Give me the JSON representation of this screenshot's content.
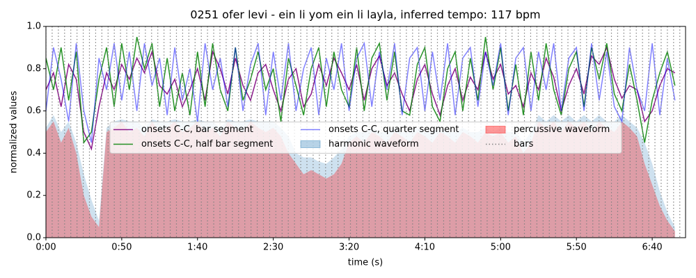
{
  "chart_data": {
    "type": "line",
    "title": "0251 ofer levi - ein li yom ein li layla, inferred tempo: 117 bpm",
    "xlabel": "time (s)",
    "ylabel": "normalized values",
    "xlim": [
      0,
      422
    ],
    "ylim": [
      0,
      1
    ],
    "xticks": [
      {
        "value": 0,
        "label": "0:00"
      },
      {
        "value": 50,
        "label": "0:50"
      },
      {
        "value": 100,
        "label": "1:40"
      },
      {
        "value": 150,
        "label": "2:30"
      },
      {
        "value": 200,
        "label": "3:20"
      },
      {
        "value": 250,
        "label": "4:10"
      },
      {
        "value": 300,
        "label": "5:00"
      },
      {
        "value": 350,
        "label": "5:50"
      },
      {
        "value": 400,
        "label": "6:40"
      }
    ],
    "yticks": [
      {
        "value": 0,
        "label": "0.0"
      },
      {
        "value": 0.2,
        "label": "0.2"
      },
      {
        "value": 0.4,
        "label": "0.4"
      },
      {
        "value": 0.6,
        "label": "0.6"
      },
      {
        "value": 0.8,
        "label": "0.8"
      },
      {
        "value": 1,
        "label": "1.0"
      }
    ],
    "legend": "center",
    "x": [
      0,
      5,
      10,
      15,
      20,
      25,
      30,
      35,
      40,
      45,
      50,
      55,
      60,
      65,
      70,
      75,
      80,
      85,
      90,
      95,
      100,
      105,
      110,
      115,
      120,
      125,
      130,
      135,
      140,
      145,
      150,
      155,
      160,
      165,
      170,
      175,
      180,
      185,
      190,
      195,
      200,
      205,
      210,
      215,
      220,
      225,
      230,
      235,
      240,
      245,
      250,
      255,
      260,
      265,
      270,
      275,
      280,
      285,
      290,
      295,
      300,
      305,
      310,
      315,
      320,
      325,
      330,
      335,
      340,
      345,
      350,
      355,
      360,
      365,
      370,
      375,
      380,
      385,
      390,
      395,
      400,
      405,
      410,
      415
    ],
    "series": [
      {
        "name": "onsets C-C, bar segment",
        "style": "line",
        "color": "#800080",
        "opacity": 0.9,
        "values": [
          0.7,
          0.78,
          0.62,
          0.82,
          0.75,
          0.5,
          0.42,
          0.62,
          0.78,
          0.7,
          0.82,
          0.75,
          0.85,
          0.78,
          0.88,
          0.72,
          0.68,
          0.75,
          0.62,
          0.7,
          0.8,
          0.65,
          0.88,
          0.8,
          0.68,
          0.85,
          0.72,
          0.65,
          0.78,
          0.82,
          0.7,
          0.6,
          0.75,
          0.8,
          0.62,
          0.68,
          0.82,
          0.72,
          0.85,
          0.78,
          0.7,
          0.82,
          0.65,
          0.8,
          0.86,
          0.72,
          0.78,
          0.68,
          0.6,
          0.75,
          0.82,
          0.68,
          0.58,
          0.72,
          0.8,
          0.65,
          0.76,
          0.7,
          0.88,
          0.75,
          0.82,
          0.68,
          0.72,
          0.62,
          0.78,
          0.7,
          0.85,
          0.76,
          0.6,
          0.72,
          0.8,
          0.68,
          0.86,
          0.82,
          0.9,
          0.75,
          0.66,
          0.72,
          0.7,
          0.55,
          0.6,
          0.72,
          0.8,
          0.78
        ]
      },
      {
        "name": "onsets C-C, half bar segment",
        "style": "line",
        "color": "#008000",
        "opacity": 0.85,
        "values": [
          0.85,
          0.7,
          0.9,
          0.65,
          0.88,
          0.45,
          0.5,
          0.75,
          0.9,
          0.62,
          0.92,
          0.7,
          0.95,
          0.8,
          0.92,
          0.62,
          0.85,
          0.6,
          0.78,
          0.58,
          0.88,
          0.62,
          0.92,
          0.7,
          0.6,
          0.9,
          0.65,
          0.75,
          0.88,
          0.7,
          0.8,
          0.55,
          0.85,
          0.72,
          0.58,
          0.8,
          0.9,
          0.62,
          0.88,
          0.7,
          0.62,
          0.9,
          0.6,
          0.85,
          0.92,
          0.65,
          0.88,
          0.6,
          0.58,
          0.82,
          0.9,
          0.62,
          0.55,
          0.8,
          0.88,
          0.6,
          0.85,
          0.65,
          0.95,
          0.7,
          0.9,
          0.6,
          0.82,
          0.58,
          0.88,
          0.65,
          0.92,
          0.7,
          0.58,
          0.8,
          0.88,
          0.62,
          0.9,
          0.75,
          0.92,
          0.68,
          0.6,
          0.82,
          0.65,
          0.45,
          0.65,
          0.78,
          0.88,
          0.72
        ]
      },
      {
        "name": "onsets C-C, quarter segment",
        "style": "line",
        "color": "#0000ff",
        "opacity": 0.5,
        "values": [
          0.6,
          0.9,
          0.75,
          0.55,
          0.92,
          0.6,
          0.45,
          0.85,
          0.7,
          0.92,
          0.65,
          0.88,
          0.6,
          0.92,
          0.72,
          0.85,
          0.58,
          0.9,
          0.65,
          0.8,
          0.55,
          0.92,
          0.7,
          0.85,
          0.62,
          0.9,
          0.6,
          0.82,
          0.92,
          0.58,
          0.88,
          0.65,
          0.92,
          0.6,
          0.8,
          0.9,
          0.58,
          0.85,
          0.7,
          0.92,
          0.6,
          0.85,
          0.92,
          0.62,
          0.88,
          0.7,
          0.92,
          0.58,
          0.85,
          0.9,
          0.6,
          0.88,
          0.65,
          0.92,
          0.58,
          0.85,
          0.9,
          0.62,
          0.88,
          0.72,
          0.92,
          0.58,
          0.85,
          0.9,
          0.6,
          0.88,
          0.7,
          0.92,
          0.6,
          0.85,
          0.9,
          0.6,
          0.92,
          0.65,
          0.88,
          0.62,
          0.55,
          0.9,
          0.7,
          0.6,
          0.92,
          0.58,
          0.85,
          0.65
        ]
      },
      {
        "name": "harmonic waveform",
        "style": "area",
        "color": "#1f77b4",
        "opacity": 0.22,
        "values": [
          0.52,
          0.58,
          0.5,
          0.55,
          0.45,
          0.3,
          0.18,
          0.08,
          0.52,
          0.55,
          0.56,
          0.55,
          0.55,
          0.52,
          0.56,
          0.55,
          0.55,
          0.56,
          0.55,
          0.55,
          0.56,
          0.55,
          0.55,
          0.52,
          0.56,
          0.55,
          0.55,
          0.56,
          0.55,
          0.55,
          0.55,
          0.52,
          0.48,
          0.4,
          0.38,
          0.38,
          0.36,
          0.35,
          0.38,
          0.42,
          0.48,
          0.5,
          0.5,
          0.52,
          0.5,
          0.5,
          0.52,
          0.5,
          0.5,
          0.52,
          0.5,
          0.5,
          0.52,
          0.5,
          0.5,
          0.52,
          0.5,
          0.5,
          0.52,
          0.5,
          0.52,
          0.5,
          0.5,
          0.45,
          0.5,
          0.58,
          0.55,
          0.58,
          0.55,
          0.58,
          0.55,
          0.58,
          0.55,
          0.58,
          0.55,
          0.55,
          0.58,
          0.55,
          0.52,
          0.45,
          0.35,
          0.22,
          0.12,
          0.05
        ]
      },
      {
        "name": "percussive waveform",
        "style": "area",
        "color": "#ff0000",
        "opacity": 0.3,
        "values": [
          0.5,
          0.55,
          0.45,
          0.52,
          0.4,
          0.2,
          0.1,
          0.05,
          0.5,
          0.52,
          0.55,
          0.5,
          0.52,
          0.48,
          0.55,
          0.5,
          0.52,
          0.55,
          0.5,
          0.52,
          0.55,
          0.5,
          0.52,
          0.48,
          0.55,
          0.52,
          0.5,
          0.55,
          0.52,
          0.5,
          0.52,
          0.48,
          0.4,
          0.35,
          0.3,
          0.32,
          0.3,
          0.28,
          0.3,
          0.35,
          0.45,
          0.48,
          0.45,
          0.5,
          0.48,
          0.45,
          0.5,
          0.48,
          0.45,
          0.5,
          0.48,
          0.45,
          0.5,
          0.48,
          0.45,
          0.5,
          0.48,
          0.45,
          0.5,
          0.48,
          0.5,
          0.45,
          0.48,
          0.4,
          0.45,
          0.55,
          0.52,
          0.55,
          0.5,
          0.55,
          0.52,
          0.55,
          0.5,
          0.55,
          0.52,
          0.5,
          0.55,
          0.52,
          0.48,
          0.35,
          0.25,
          0.15,
          0.08,
          0.03
        ]
      }
    ],
    "bars": {
      "name": "bars",
      "color": "#808080",
      "x": [
        0,
        4.1,
        8.2,
        12.3,
        16.4,
        20.5,
        24.6,
        28.7,
        32.8,
        36.9,
        41,
        45.1,
        49.2,
        53.3,
        57.4,
        61.5,
        65.6,
        69.7,
        73.8,
        77.9,
        82,
        86.1,
        90.2,
        94.3,
        98.4,
        102.5,
        106.6,
        110.7,
        114.8,
        118.9,
        123,
        127.1,
        131.2,
        135.3,
        139.4,
        143.5,
        147.6,
        151.7,
        155.8,
        159.9,
        164,
        168.1,
        172.2,
        176.3,
        180.4,
        184.5,
        188.6,
        192.7,
        196.8,
        200.9,
        205,
        209.1,
        213.2,
        217.3,
        221.4,
        225.5,
        229.6,
        233.7,
        237.8,
        241.9,
        246,
        250.1,
        254.2,
        258.3,
        262.4,
        266.5,
        270.6,
        274.7,
        278.8,
        282.9,
        287,
        291.1,
        295.2,
        299.3,
        303.4,
        307.5,
        311.6,
        315.7,
        319.8,
        323.9,
        328,
        332.1,
        336.2,
        340.3,
        344.4,
        348.5,
        352.6,
        356.7,
        360.8,
        364.9,
        369,
        373.1,
        377.2,
        381.3,
        385.4,
        389.5,
        393.6,
        397.7,
        401.8,
        405.9,
        410,
        414.1,
        418.2
      ]
    }
  }
}
